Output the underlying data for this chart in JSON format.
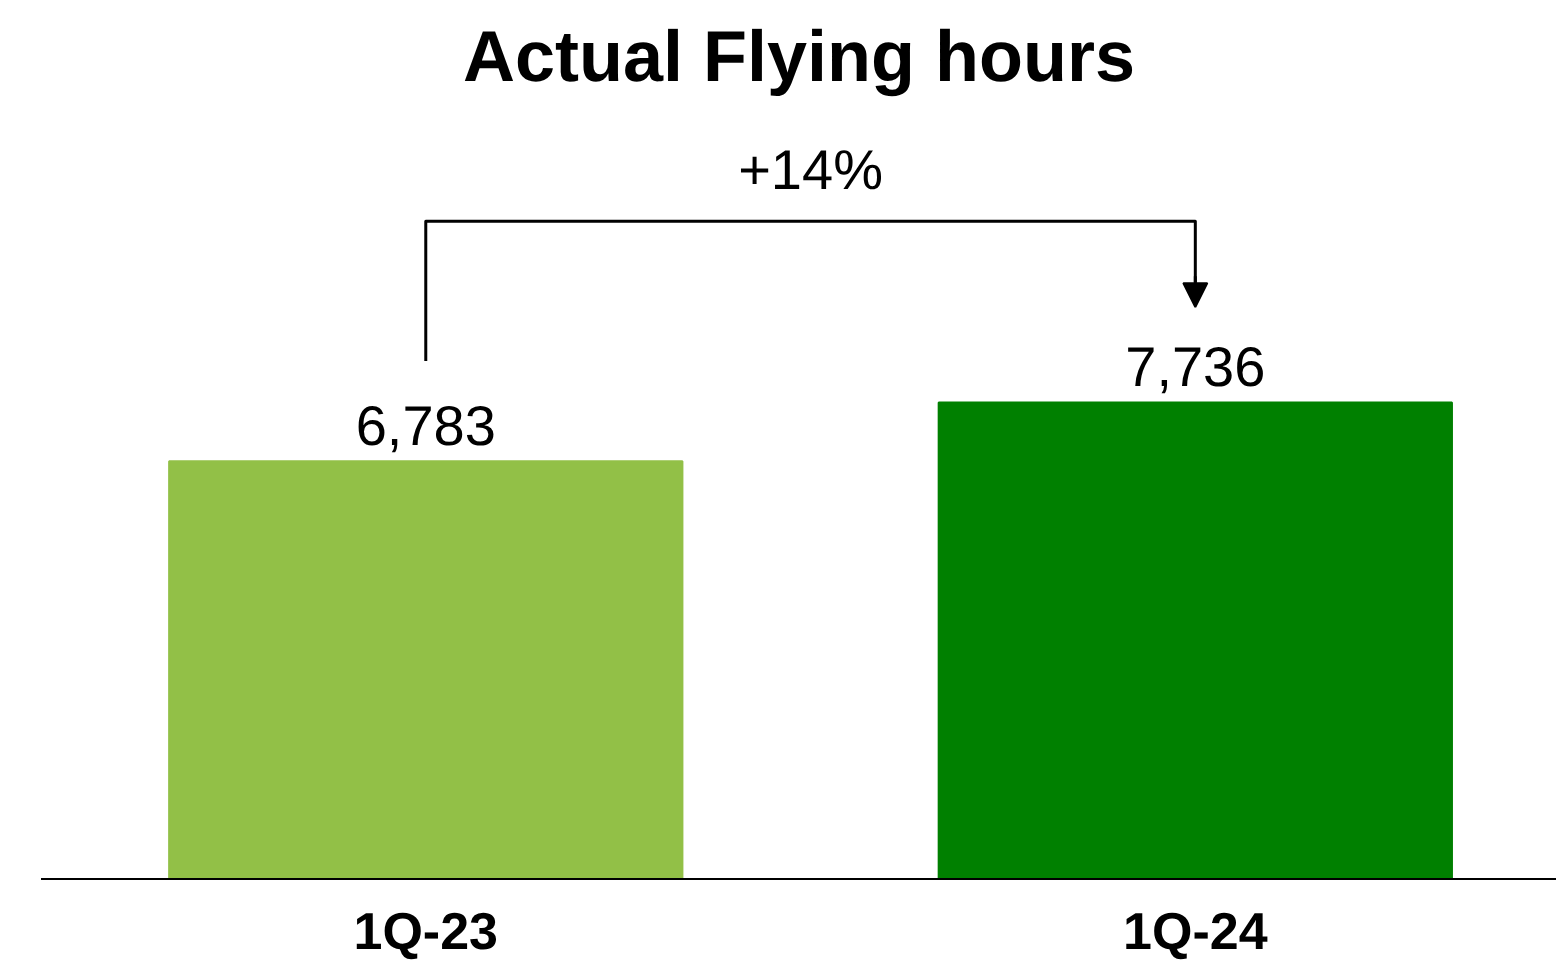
{
  "chart_data": {
    "type": "bar",
    "title": "Actual Flying hours",
    "categories": [
      "1Q-23",
      "1Q-24"
    ],
    "values": [
      6783,
      7736
    ],
    "colors": [
      "#92c047",
      "#008000"
    ],
    "value_labels": [
      "6,783",
      "7,736"
    ],
    "annotations": [
      "+14%"
    ]
  }
}
